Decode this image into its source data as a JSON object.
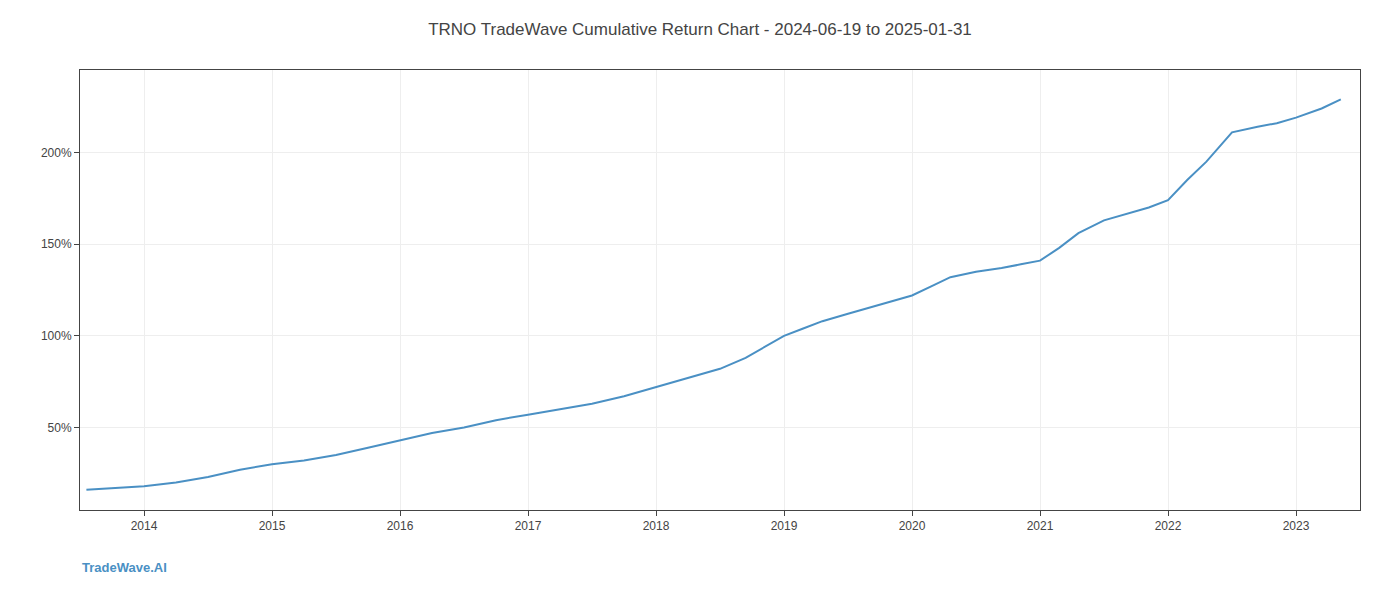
{
  "chart_data": {
    "type": "line",
    "title": "TRNO TradeWave Cumulative Return Chart - 2024-06-19 to 2025-01-31",
    "annotations": [
      {
        "text": "TradeWave.AI",
        "color": "#4a90c4"
      }
    ],
    "x": [
      2013.55,
      2013.75,
      2014.0,
      2014.25,
      2014.5,
      2014.75,
      2015.0,
      2015.25,
      2015.5,
      2015.75,
      2016.0,
      2016.25,
      2016.5,
      2016.75,
      2017.0,
      2017.25,
      2017.5,
      2017.75,
      2018.0,
      2018.15,
      2018.3,
      2018.5,
      2018.7,
      2018.85,
      2019.0,
      2019.15,
      2019.3,
      2019.5,
      2019.7,
      2019.85,
      2020.0,
      2020.15,
      2020.3,
      2020.5,
      2020.7,
      2020.85,
      2021.0,
      2021.15,
      2021.3,
      2021.5,
      2021.7,
      2021.85,
      2022.0,
      2022.15,
      2022.3,
      2022.5,
      2022.7,
      2022.85,
      2023.0,
      2023.2,
      2023.35
    ],
    "values": [
      16,
      17,
      18,
      20,
      23,
      27,
      30,
      32,
      35,
      39,
      43,
      47,
      50,
      54,
      57,
      60,
      63,
      67,
      72,
      75,
      78,
      82,
      88,
      94,
      100,
      104,
      108,
      112,
      116,
      119,
      122,
      127,
      132,
      135,
      137,
      139,
      141,
      148,
      156,
      163,
      167,
      170,
      174,
      185,
      195,
      211,
      214,
      216,
      219,
      224,
      229
    ],
    "color": "#4a90c4",
    "xlim": [
      2013.5,
      2023.5
    ],
    "xticks": [
      2014,
      2015,
      2016,
      2017,
      2018,
      2019,
      2020,
      2021,
      2022,
      2023
    ],
    "ylim": [
      5,
      245
    ],
    "yticks": [
      {
        "value": 50,
        "label": "50%"
      },
      {
        "value": 100,
        "label": "100%"
      },
      {
        "value": 150,
        "label": "150%"
      },
      {
        "value": 200,
        "label": "200%"
      }
    ],
    "grid": true
  }
}
